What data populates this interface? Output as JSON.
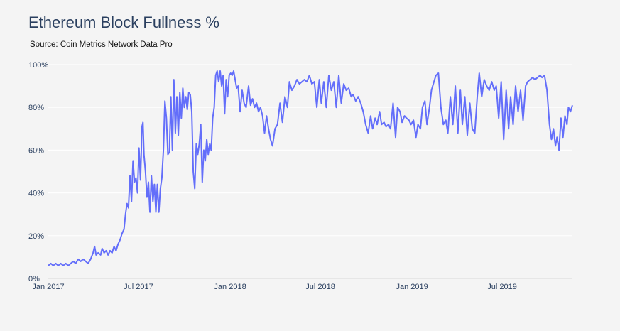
{
  "chart_data": {
    "type": "line",
    "title": "Ethereum Block Fullness %",
    "subtitle": "Source: Coin Metrics Network Data Pro",
    "xlabel": "",
    "ylabel": "",
    "x_start_date": "2017-01-01",
    "x_units": "days since start date",
    "x_range_days": [
      0,
      1052
    ],
    "ylim": [
      0,
      100
    ],
    "grid": true,
    "line_color": "#636efa",
    "y_ticks": [
      {
        "value": 0,
        "label": "0%"
      },
      {
        "value": 20,
        "label": "20%"
      },
      {
        "value": 40,
        "label": "40%"
      },
      {
        "value": 60,
        "label": "60%"
      },
      {
        "value": 80,
        "label": "80%"
      },
      {
        "value": 100,
        "label": "100%"
      }
    ],
    "x_ticks": [
      {
        "day": 0,
        "label": "Jan 2017"
      },
      {
        "day": 181,
        "label": "Jul 2017"
      },
      {
        "day": 365,
        "label": "Jan 2018"
      },
      {
        "day": 546,
        "label": "Jul 2018"
      },
      {
        "day": 730,
        "label": "Jan 2019"
      },
      {
        "day": 911,
        "label": "Jul 2019"
      }
    ],
    "series": [
      {
        "name": "Block Fullness %",
        "points": [
          [
            0,
            6
          ],
          [
            5,
            7
          ],
          [
            10,
            6
          ],
          [
            15,
            7
          ],
          [
            20,
            6
          ],
          [
            25,
            7
          ],
          [
            30,
            6
          ],
          [
            35,
            7
          ],
          [
            40,
            6
          ],
          [
            45,
            7
          ],
          [
            50,
            8
          ],
          [
            55,
            7
          ],
          [
            60,
            9
          ],
          [
            65,
            8
          ],
          [
            70,
            9
          ],
          [
            75,
            8
          ],
          [
            80,
            7
          ],
          [
            85,
            9
          ],
          [
            90,
            12
          ],
          [
            93,
            15
          ],
          [
            96,
            11
          ],
          [
            100,
            12
          ],
          [
            105,
            11
          ],
          [
            108,
            14
          ],
          [
            112,
            12
          ],
          [
            116,
            13
          ],
          [
            120,
            11
          ],
          [
            124,
            13
          ],
          [
            128,
            12
          ],
          [
            132,
            15
          ],
          [
            136,
            13
          ],
          [
            140,
            16
          ],
          [
            144,
            18
          ],
          [
            148,
            21
          ],
          [
            152,
            23
          ],
          [
            155,
            30
          ],
          [
            158,
            35
          ],
          [
            161,
            33
          ],
          [
            164,
            48
          ],
          [
            167,
            36
          ],
          [
            170,
            55
          ],
          [
            173,
            45
          ],
          [
            176,
            47
          ],
          [
            179,
            40
          ],
          [
            182,
            61
          ],
          [
            185,
            46
          ],
          [
            188,
            71
          ],
          [
            190,
            73
          ],
          [
            192,
            58
          ],
          [
            195,
            50
          ],
          [
            198,
            38
          ],
          [
            201,
            45
          ],
          [
            204,
            31
          ],
          [
            207,
            48
          ],
          [
            210,
            36
          ],
          [
            213,
            44
          ],
          [
            216,
            31
          ],
          [
            219,
            44
          ],
          [
            222,
            31
          ],
          [
            225,
            42
          ],
          [
            228,
            47
          ],
          [
            231,
            60
          ],
          [
            234,
            83
          ],
          [
            237,
            75
          ],
          [
            240,
            58
          ],
          [
            243,
            59
          ],
          [
            246,
            85
          ],
          [
            249,
            60
          ],
          [
            252,
            93
          ],
          [
            255,
            68
          ],
          [
            258,
            85
          ],
          [
            261,
            67
          ],
          [
            264,
            87
          ],
          [
            267,
            75
          ],
          [
            270,
            89
          ],
          [
            273,
            80
          ],
          [
            276,
            85
          ],
          [
            279,
            79
          ],
          [
            282,
            87
          ],
          [
            285,
            86
          ],
          [
            288,
            78
          ],
          [
            291,
            50
          ],
          [
            294,
            42
          ],
          [
            297,
            63
          ],
          [
            300,
            58
          ],
          [
            303,
            63
          ],
          [
            306,
            72
          ],
          [
            309,
            45
          ],
          [
            312,
            60
          ],
          [
            315,
            55
          ],
          [
            318,
            65
          ],
          [
            321,
            58
          ],
          [
            324,
            63
          ],
          [
            327,
            60
          ],
          [
            330,
            75
          ],
          [
            333,
            80
          ],
          [
            336,
            95
          ],
          [
            339,
            97
          ],
          [
            342,
            92
          ],
          [
            345,
            97
          ],
          [
            348,
            90
          ],
          [
            351,
            95
          ],
          [
            354,
            77
          ],
          [
            357,
            93
          ],
          [
            360,
            85
          ],
          [
            363,
            95
          ],
          [
            366,
            96
          ],
          [
            369,
            95
          ],
          [
            372,
            97
          ],
          [
            375,
            93
          ],
          [
            378,
            89
          ],
          [
            381,
            90
          ],
          [
            385,
            78
          ],
          [
            389,
            88
          ],
          [
            393,
            82
          ],
          [
            397,
            80
          ],
          [
            402,
            90
          ],
          [
            406,
            81
          ],
          [
            410,
            84
          ],
          [
            414,
            80
          ],
          [
            418,
            82
          ],
          [
            422,
            78
          ],
          [
            426,
            80
          ],
          [
            430,
            76
          ],
          [
            434,
            68
          ],
          [
            438,
            76
          ],
          [
            442,
            70
          ],
          [
            446,
            65
          ],
          [
            450,
            62
          ],
          [
            455,
            70
          ],
          [
            460,
            72
          ],
          [
            465,
            82
          ],
          [
            470,
            73
          ],
          [
            475,
            85
          ],
          [
            480,
            80
          ],
          [
            484,
            92
          ],
          [
            489,
            88
          ],
          [
            494,
            90
          ],
          [
            499,
            93
          ],
          [
            504,
            91
          ],
          [
            509,
            92
          ],
          [
            514,
            93
          ],
          [
            519,
            92
          ],
          [
            524,
            95
          ],
          [
            529,
            91
          ],
          [
            534,
            92
          ],
          [
            539,
            80
          ],
          [
            544,
            93
          ],
          [
            548,
            82
          ],
          [
            553,
            92
          ],
          [
            558,
            80
          ],
          [
            563,
            95
          ],
          [
            568,
            88
          ],
          [
            573,
            92
          ],
          [
            578,
            80
          ],
          [
            583,
            95
          ],
          [
            588,
            82
          ],
          [
            593,
            91
          ],
          [
            598,
            88
          ],
          [
            603,
            89
          ],
          [
            608,
            85
          ],
          [
            612,
            86
          ],
          [
            617,
            83
          ],
          [
            622,
            85
          ],
          [
            627,
            82
          ],
          [
            632,
            78
          ],
          [
            637,
            72
          ],
          [
            642,
            68
          ],
          [
            647,
            76
          ],
          [
            651,
            70
          ],
          [
            656,
            75
          ],
          [
            660,
            72
          ],
          [
            665,
            78
          ],
          [
            669,
            72
          ],
          [
            674,
            73
          ],
          [
            678,
            71
          ],
          [
            683,
            72
          ],
          [
            687,
            70
          ],
          [
            692,
            82
          ],
          [
            697,
            66
          ],
          [
            701,
            80
          ],
          [
            706,
            78
          ],
          [
            710,
            73
          ],
          [
            715,
            76
          ],
          [
            719,
            75
          ],
          [
            724,
            74
          ],
          [
            728,
            72
          ],
          [
            733,
            74
          ],
          [
            738,
            66
          ],
          [
            742,
            72
          ],
          [
            747,
            70
          ],
          [
            751,
            80
          ],
          [
            756,
            83
          ],
          [
            760,
            72
          ],
          [
            765,
            80
          ],
          [
            769,
            88
          ],
          [
            774,
            92
          ],
          [
            778,
            95
          ],
          [
            783,
            96
          ],
          [
            788,
            80
          ],
          [
            793,
            72
          ],
          [
            798,
            74
          ],
          [
            802,
            68
          ],
          [
            807,
            85
          ],
          [
            812,
            72
          ],
          [
            817,
            90
          ],
          [
            822,
            68
          ],
          [
            827,
            88
          ],
          [
            831,
            72
          ],
          [
            836,
            85
          ],
          [
            841,
            67
          ],
          [
            846,
            82
          ],
          [
            851,
            70
          ],
          [
            856,
            68
          ],
          [
            861,
            85
          ],
          [
            865,
            96
          ],
          [
            870,
            85
          ],
          [
            875,
            93
          ],
          [
            880,
            90
          ],
          [
            885,
            88
          ],
          [
            890,
            92
          ],
          [
            895,
            88
          ],
          [
            899,
            90
          ],
          [
            904,
            75
          ],
          [
            909,
            92
          ],
          [
            914,
            65
          ],
          [
            919,
            88
          ],
          [
            924,
            70
          ],
          [
            928,
            85
          ],
          [
            933,
            72
          ],
          [
            938,
            90
          ],
          [
            943,
            78
          ],
          [
            948,
            88
          ],
          [
            953,
            74
          ],
          [
            958,
            90
          ],
          [
            962,
            92
          ],
          [
            967,
            93
          ],
          [
            972,
            94
          ],
          [
            977,
            93
          ],
          [
            982,
            94
          ],
          [
            987,
            95
          ],
          [
            991,
            94
          ],
          [
            996,
            95
          ],
          [
            1001,
            88
          ],
          [
            1006,
            72
          ],
          [
            1010,
            65
          ],
          [
            1014,
            70
          ],
          [
            1018,
            62
          ],
          [
            1021,
            66
          ],
          [
            1025,
            60
          ],
          [
            1029,
            75
          ],
          [
            1033,
            66
          ],
          [
            1037,
            76
          ],
          [
            1041,
            72
          ],
          [
            1044,
            80
          ],
          [
            1048,
            78
          ],
          [
            1052,
            81
          ]
        ]
      }
    ]
  }
}
